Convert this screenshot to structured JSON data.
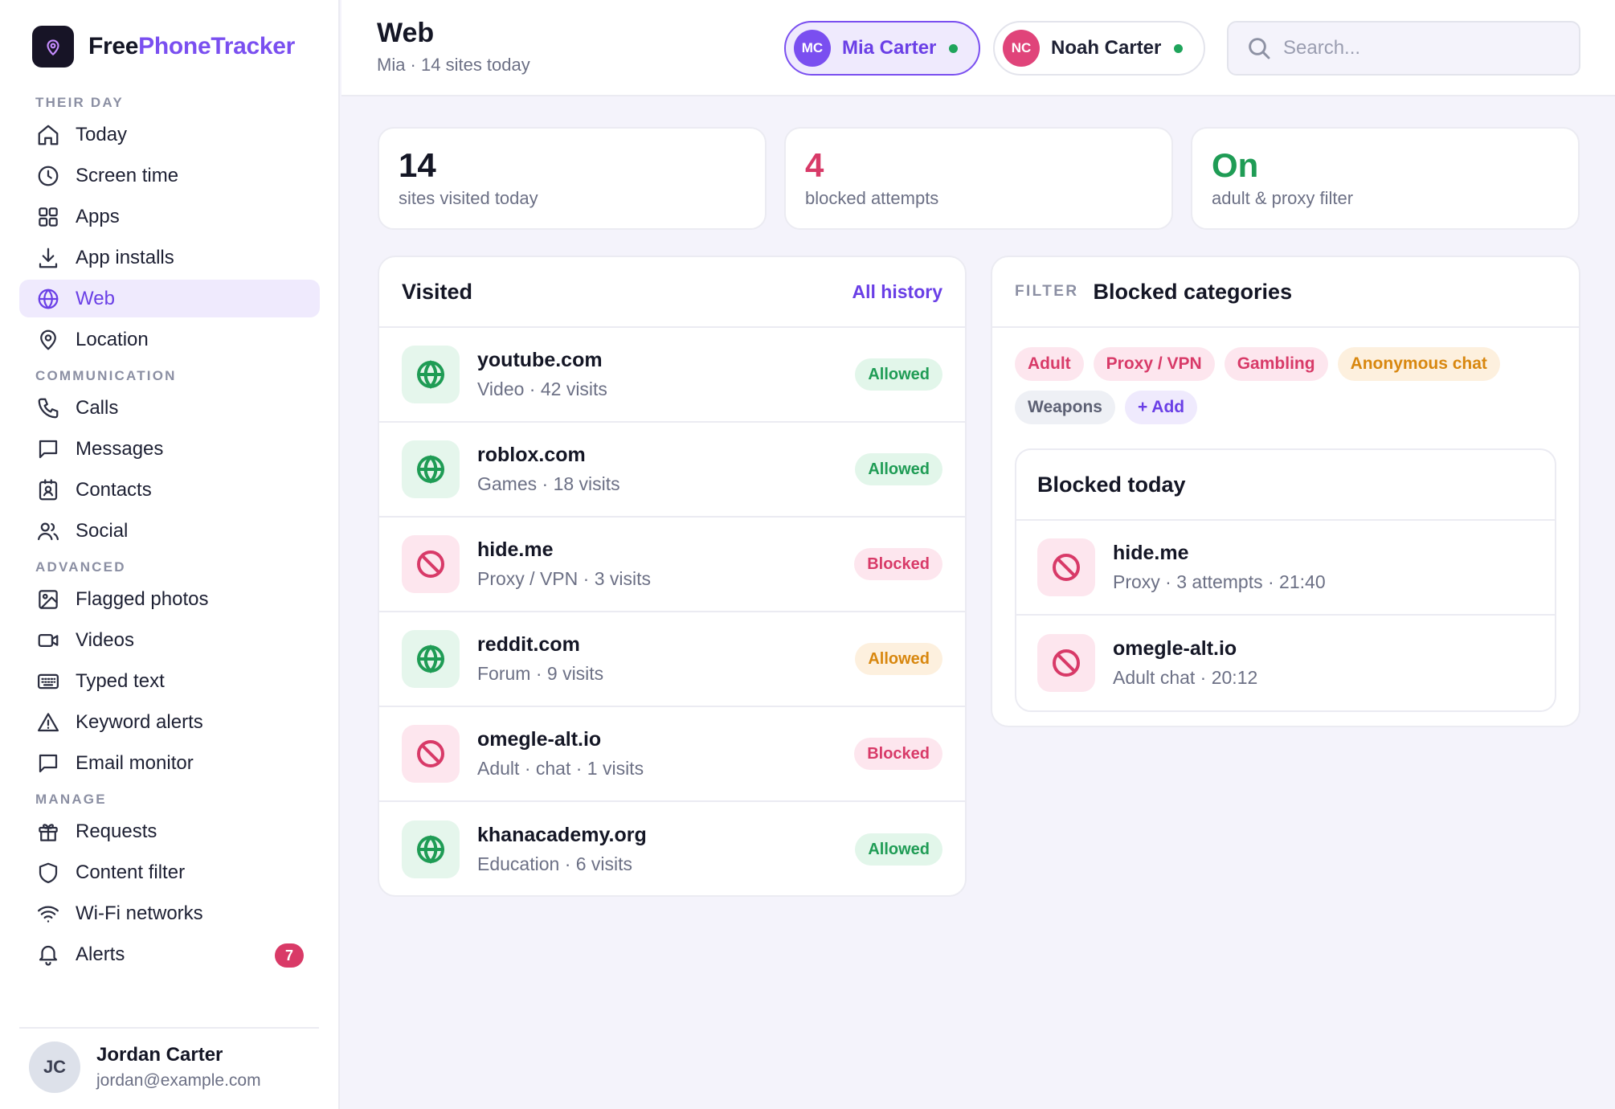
{
  "brand": {
    "name_part1": "Free",
    "name_part2": "PhoneTracker"
  },
  "nav": {
    "sections": [
      {
        "label": "THEIR DAY",
        "items": [
          {
            "label": "Today",
            "icon": "home-icon"
          },
          {
            "label": "Screen time",
            "icon": "clock-icon"
          },
          {
            "label": "Apps",
            "icon": "grid-icon"
          },
          {
            "label": "App installs",
            "icon": "download-icon"
          },
          {
            "label": "Web",
            "icon": "globe-icon",
            "active": true
          },
          {
            "label": "Location",
            "icon": "map-pin-icon"
          }
        ]
      },
      {
        "label": "COMMUNICATION",
        "items": [
          {
            "label": "Calls",
            "icon": "phone-icon"
          },
          {
            "label": "Messages",
            "icon": "message-icon"
          },
          {
            "label": "Contacts",
            "icon": "contact-card-icon"
          },
          {
            "label": "Social",
            "icon": "users-icon"
          }
        ]
      },
      {
        "label": "ADVANCED",
        "items": [
          {
            "label": "Flagged photos",
            "icon": "image-icon"
          },
          {
            "label": "Videos",
            "icon": "video-icon"
          },
          {
            "label": "Typed text",
            "icon": "keyboard-icon"
          },
          {
            "label": "Keyword alerts",
            "icon": "warning-icon"
          },
          {
            "label": "Email monitor",
            "icon": "message-square-icon"
          }
        ]
      },
      {
        "label": "MANAGE",
        "items": [
          {
            "label": "Requests",
            "icon": "gift-icon"
          },
          {
            "label": "Content filter",
            "icon": "shield-icon"
          },
          {
            "label": "Wi-Fi networks",
            "icon": "wifi-icon"
          },
          {
            "label": "Alerts",
            "icon": "bell-icon",
            "badge": "7"
          }
        ]
      }
    ]
  },
  "user": {
    "initials": "JC",
    "name": "Jordan Carter",
    "email": "jordan@example.com"
  },
  "header": {
    "title": "Web",
    "subtitle": "Mia · 14 sites today",
    "children": [
      {
        "initials": "MC",
        "name": "Mia Carter",
        "color": "#7a4ff0",
        "active": true
      },
      {
        "initials": "NC",
        "name": "Noah Carter",
        "color": "#e0447a",
        "active": false
      }
    ],
    "search_placeholder": "Search..."
  },
  "stats": [
    {
      "value": "14",
      "label": "sites visited today",
      "color": "#141625"
    },
    {
      "value": "4",
      "label": "blocked attempts",
      "color": "#d83a68"
    },
    {
      "value": "On",
      "label": "adult & proxy filter",
      "color": "#1f9c55"
    }
  ],
  "visited": {
    "title": "Visited",
    "link": "All history",
    "rows": [
      {
        "site": "youtube.com",
        "meta": "Video · 42 visits",
        "status": "Allowed",
        "tone": "green",
        "kind": "ok"
      },
      {
        "site": "roblox.com",
        "meta": "Games · 18 visits",
        "status": "Allowed",
        "tone": "green",
        "kind": "ok"
      },
      {
        "site": "hide.me",
        "meta": "Proxy / VPN · 3 visits",
        "status": "Blocked",
        "tone": "red",
        "kind": "bad"
      },
      {
        "site": "reddit.com",
        "meta": "Forum · 9 visits",
        "status": "Allowed",
        "tone": "amber",
        "kind": "ok"
      },
      {
        "site": "omegle-alt.io",
        "meta": "Adult · chat · 1 visits",
        "status": "Blocked",
        "tone": "red",
        "kind": "bad"
      },
      {
        "site": "khanacademy.org",
        "meta": "Education · 6 visits",
        "status": "Allowed",
        "tone": "green",
        "kind": "ok"
      }
    ]
  },
  "filter": {
    "overline": "FILTER",
    "title": "Blocked categories",
    "chips": [
      {
        "label": "Adult",
        "tone": "red"
      },
      {
        "label": "Proxy / VPN",
        "tone": "red"
      },
      {
        "label": "Gambling",
        "tone": "red"
      },
      {
        "label": "Anonymous chat",
        "tone": "amber"
      },
      {
        "label": "Weapons",
        "tone": "gray"
      },
      {
        "label": "+ Add",
        "tone": "purple"
      }
    ],
    "blocked_today": {
      "title": "Blocked today",
      "rows": [
        {
          "site": "hide.me",
          "meta": "Proxy · 3 attempts · 21:40"
        },
        {
          "site": "omegle-alt.io",
          "meta": "Adult chat · 20:12"
        }
      ]
    }
  }
}
